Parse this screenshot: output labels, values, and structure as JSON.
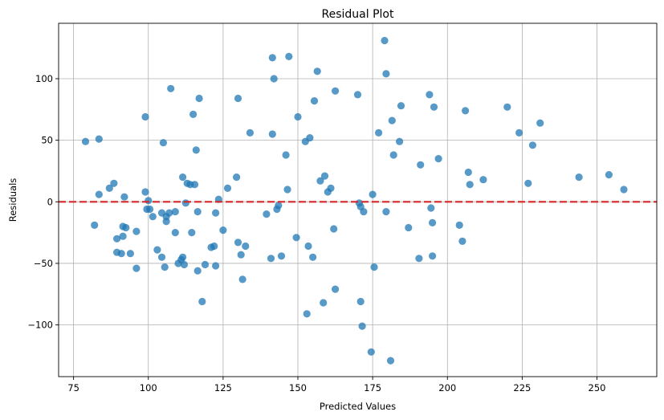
{
  "chart_data": {
    "type": "scatter",
    "title": "Residual Plot",
    "xlabel": "Predicted Values",
    "ylabel": "Residuals",
    "xlim": [
      70,
      270
    ],
    "ylim": [
      -142,
      145
    ],
    "x_ticks": [
      75,
      100,
      125,
      150,
      175,
      200,
      225,
      250
    ],
    "y_ticks": [
      -100,
      -50,
      0,
      50,
      100
    ],
    "grid": true,
    "reference_line": {
      "y": 0,
      "style": "dashed",
      "color": "#d62728"
    },
    "point_color": "#1f77b4",
    "points": [
      [
        79,
        49
      ],
      [
        82,
        -19
      ],
      [
        83.5,
        51
      ],
      [
        83.5,
        6
      ],
      [
        87,
        11
      ],
      [
        88.5,
        15
      ],
      [
        89.5,
        -30
      ],
      [
        89.5,
        -41
      ],
      [
        91,
        -42
      ],
      [
        91.5,
        -28
      ],
      [
        91.5,
        -20
      ],
      [
        92,
        4
      ],
      [
        92.5,
        -21
      ],
      [
        94,
        -42
      ],
      [
        96,
        -24
      ],
      [
        96,
        -54
      ],
      [
        99,
        69
      ],
      [
        99,
        8
      ],
      [
        99.5,
        -6
      ],
      [
        100.5,
        -6
      ],
      [
        100,
        1
      ],
      [
        101.5,
        -12
      ],
      [
        103,
        -39
      ],
      [
        104.5,
        -45
      ],
      [
        104.5,
        -9
      ],
      [
        105,
        48
      ],
      [
        105.5,
        -53
      ],
      [
        106,
        -16
      ],
      [
        106,
        -12
      ],
      [
        107,
        -9
      ],
      [
        107.5,
        92
      ],
      [
        109,
        -8
      ],
      [
        109,
        -25
      ],
      [
        110,
        -50
      ],
      [
        111,
        -47
      ],
      [
        111.5,
        20
      ],
      [
        111.5,
        -45
      ],
      [
        112,
        -51
      ],
      [
        112.5,
        -1
      ],
      [
        113,
        15
      ],
      [
        114,
        14
      ],
      [
        114.5,
        -25
      ],
      [
        115,
        71
      ],
      [
        115.5,
        14
      ],
      [
        116,
        42
      ],
      [
        116.5,
        -56
      ],
      [
        116.5,
        -8
      ],
      [
        117,
        84
      ],
      [
        118,
        -81
      ],
      [
        119,
        -51
      ],
      [
        121,
        -37
      ],
      [
        122,
        -36
      ],
      [
        122.5,
        -9
      ],
      [
        122.5,
        -52
      ],
      [
        123.5,
        2
      ],
      [
        125,
        -23
      ],
      [
        126.5,
        11
      ],
      [
        129.5,
        20
      ],
      [
        130,
        84
      ],
      [
        130,
        -33
      ],
      [
        131,
        -43
      ],
      [
        131.5,
        -63
      ],
      [
        132.5,
        -36
      ],
      [
        134,
        56
      ],
      [
        139.5,
        -10
      ],
      [
        141,
        -46
      ],
      [
        141.5,
        55
      ],
      [
        141.5,
        117
      ],
      [
        142,
        100
      ],
      [
        143,
        -6
      ],
      [
        143.5,
        -3
      ],
      [
        144.5,
        -44
      ],
      [
        146,
        38
      ],
      [
        146.5,
        10
      ],
      [
        147,
        118
      ],
      [
        149.5,
        -29
      ],
      [
        150,
        69
      ],
      [
        152.5,
        49
      ],
      [
        153,
        -91
      ],
      [
        153.5,
        -36
      ],
      [
        154,
        52
      ],
      [
        155,
        -45
      ],
      [
        155.5,
        82
      ],
      [
        156.5,
        106
      ],
      [
        157.5,
        17
      ],
      [
        158.5,
        -82
      ],
      [
        159,
        21
      ],
      [
        160,
        8
      ],
      [
        161,
        11
      ],
      [
        162,
        -22
      ],
      [
        162.5,
        90
      ],
      [
        162.5,
        -71
      ],
      [
        170,
        87
      ],
      [
        170.5,
        -1
      ],
      [
        171,
        -81
      ],
      [
        171,
        -4
      ],
      [
        171.5,
        -101
      ],
      [
        172,
        -8
      ],
      [
        174.5,
        -122
      ],
      [
        175,
        6
      ],
      [
        175.5,
        -53
      ],
      [
        177,
        56
      ],
      [
        179,
        131
      ],
      [
        179.5,
        104
      ],
      [
        179.5,
        -8
      ],
      [
        181,
        -129
      ],
      [
        181.5,
        66
      ],
      [
        182,
        38
      ],
      [
        184,
        49
      ],
      [
        184.5,
        78
      ],
      [
        187,
        -21
      ],
      [
        190.5,
        -46
      ],
      [
        191,
        30
      ],
      [
        194,
        87
      ],
      [
        194.5,
        -5
      ],
      [
        195,
        -17
      ],
      [
        195,
        -44
      ],
      [
        195.5,
        77
      ],
      [
        197,
        35
      ],
      [
        204,
        -19
      ],
      [
        205,
        -32
      ],
      [
        206,
        74
      ],
      [
        207,
        24
      ],
      [
        207.5,
        14
      ],
      [
        212,
        18
      ],
      [
        220,
        77
      ],
      [
        224,
        56
      ],
      [
        227,
        15
      ],
      [
        228.5,
        46
      ],
      [
        231,
        64
      ],
      [
        244,
        20
      ],
      [
        254,
        22
      ],
      [
        259,
        10
      ]
    ]
  }
}
